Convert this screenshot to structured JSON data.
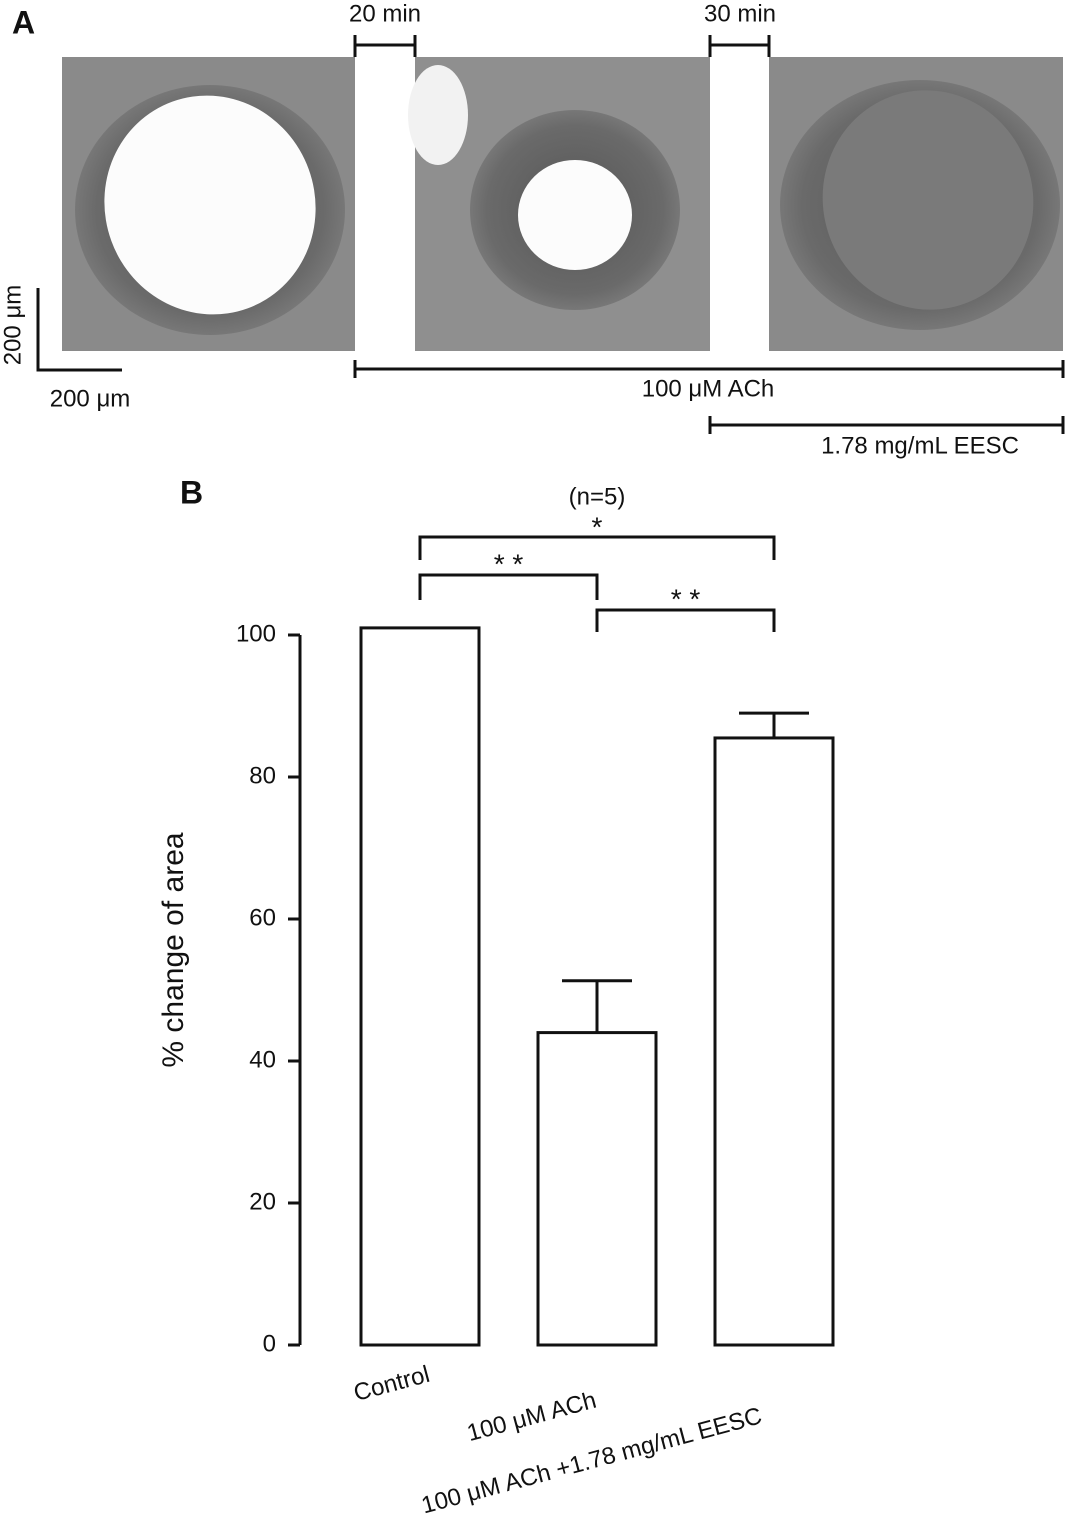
{
  "panel_a": {
    "label": "A",
    "interval_1": "20 min",
    "interval_2": "30 min",
    "scale_bar_vertical": "200 μm",
    "scale_bar_horizontal": "200 μm",
    "treatment_1": "100 μM ACh",
    "treatment_2": "1.78 mg/mL EESC"
  },
  "chart_data": {
    "type": "bar",
    "panel_label": "B",
    "annotation": "(n=5)",
    "y_label": "% change of area",
    "categories": [
      "Control",
      "100 μM ACh",
      "100 μM ACh +1.78 mg/mL EESC"
    ],
    "values": [
      101,
      44,
      85.5
    ],
    "errors": [
      null,
      7.3,
      3.5
    ],
    "color": "#ffffff",
    "ylim": [
      0,
      100
    ],
    "yticks": [
      0,
      20,
      40,
      60,
      80,
      100
    ],
    "significance": [
      {
        "label": "*"
      },
      {
        "label": "* *"
      },
      {
        "label": "* *"
      }
    ]
  }
}
